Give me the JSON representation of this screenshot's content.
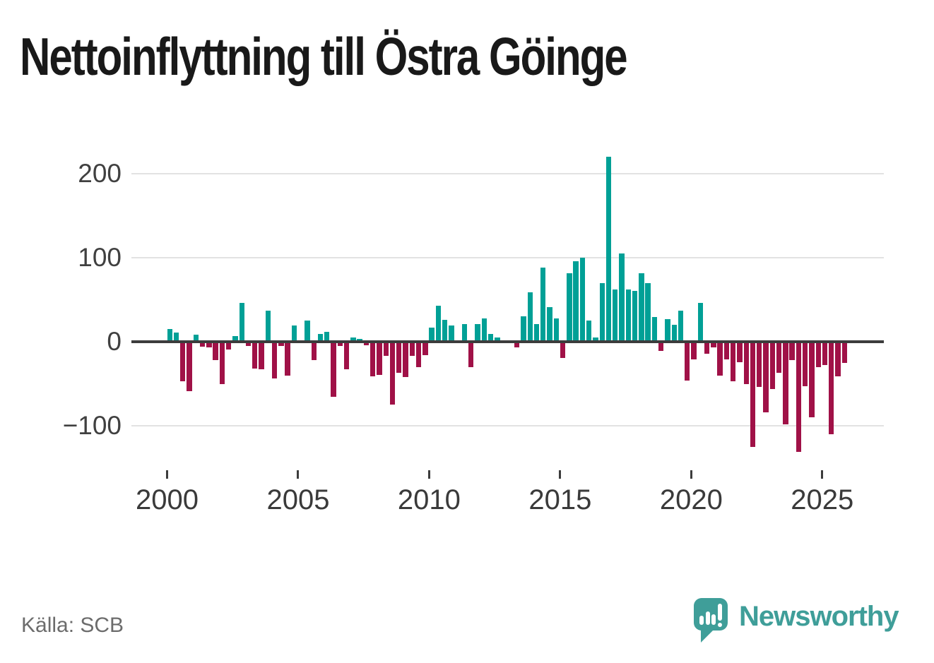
{
  "title": "Nettoinflyttning till Östra Göinge",
  "source_label": "Källa: SCB",
  "branding": {
    "logo_text": "Newsworthy"
  },
  "chart_data": {
    "type": "bar",
    "title": "Nettoinflyttning till Östra Göinge",
    "source": "SCB",
    "frequency": "quarterly",
    "x_start": "2000Q1",
    "x_end": "2025Q4",
    "xticks": [
      2000,
      2005,
      2010,
      2015,
      2020,
      2025
    ],
    "ytick_values": [
      200,
      100,
      0,
      -100
    ],
    "ytick_labels": [
      "200",
      "100",
      "0",
      "−100"
    ],
    "ylim": [
      -140,
      235
    ],
    "grid": "horizontal",
    "legend": "none",
    "positive_color": "#00a096",
    "negative_color": "#a01147",
    "values": [
      15,
      11,
      -47,
      -59,
      8,
      -6,
      -7,
      -22,
      -50,
      -9,
      7,
      46,
      -5,
      -32,
      -33,
      37,
      -44,
      -5,
      -40,
      19,
      0,
      25,
      -22,
      9,
      12,
      -65,
      -5,
      -33,
      5,
      3,
      -4,
      -41,
      -39,
      -17,
      -75,
      -37,
      -42,
      -17,
      -30,
      -16,
      17,
      43,
      26,
      19,
      0,
      21,
      -30,
      21,
      28,
      9,
      5,
      0,
      0,
      -7,
      30,
      59,
      21,
      88,
      41,
      28,
      -19,
      81,
      96,
      100,
      25,
      5,
      70,
      220,
      62,
      105,
      62,
      60,
      81,
      70,
      29,
      -11,
      27,
      20,
      37,
      -46,
      -21,
      46,
      -14,
      -7,
      -40,
      -21,
      -47,
      -24,
      -50,
      -125,
      -54,
      -84,
      -56,
      -37,
      -98,
      -22,
      -131,
      -53,
      -90,
      -30,
      -28,
      -110,
      -41,
      -25
    ]
  }
}
